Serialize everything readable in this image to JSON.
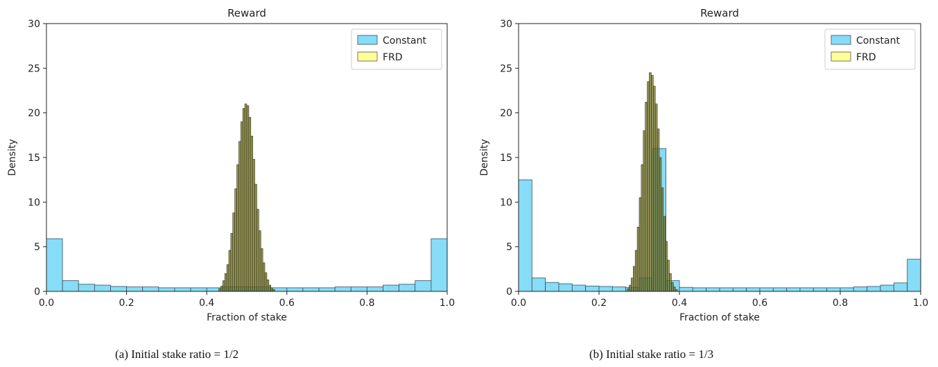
{
  "chart_data": [
    {
      "type": "bar",
      "caption": "(a) Initial stake ratio = 1/2",
      "title": "Reward",
      "xlabel": "Fraction of stake",
      "ylabel": "Density",
      "xlim": [
        0,
        1
      ],
      "ylim": [
        0,
        30
      ],
      "xticks": [
        "0.0",
        "0.2",
        "0.4",
        "0.6",
        "0.8",
        "1.0"
      ],
      "yticks": [
        "0",
        "5",
        "10",
        "15",
        "20",
        "25",
        "30"
      ],
      "legend_position": "top-right",
      "series": [
        {
          "name": "Constant",
          "color": "#87dcf7",
          "bin_width": 0.04,
          "bin_starts": [
            0,
            0.04,
            0.08,
            0.12,
            0.16,
            0.2,
            0.24,
            0.28,
            0.32,
            0.36,
            0.4,
            0.44,
            0.48,
            0.52,
            0.56,
            0.6,
            0.64,
            0.68,
            0.72,
            0.76,
            0.8,
            0.84,
            0.88,
            0.92,
            0.96
          ],
          "values": [
            5.9,
            1.2,
            0.8,
            0.7,
            0.55,
            0.5,
            0.5,
            0.4,
            0.4,
            0.4,
            0.4,
            0.5,
            0.5,
            0.5,
            0.4,
            0.4,
            0.4,
            0.4,
            0.5,
            0.5,
            0.5,
            0.7,
            0.8,
            1.2,
            5.9
          ]
        },
        {
          "name": "FRD",
          "color": "#ffff88",
          "bin_width": 0.005,
          "bin_starts": [
            0.43,
            0.435,
            0.44,
            0.445,
            0.45,
            0.455,
            0.46,
            0.465,
            0.47,
            0.475,
            0.48,
            0.485,
            0.49,
            0.495,
            0.5,
            0.505,
            0.51,
            0.515,
            0.52,
            0.525,
            0.53,
            0.535,
            0.54,
            0.545,
            0.55,
            0.555,
            0.56,
            0.565
          ],
          "values": [
            0.3,
            0.6,
            1.2,
            2.0,
            3.0,
            4.6,
            6.5,
            8.8,
            11.5,
            14.2,
            16.8,
            19.0,
            20.5,
            21.0,
            20.8,
            19.5,
            17.4,
            14.8,
            12.0,
            9.2,
            6.8,
            4.8,
            3.2,
            2.1,
            1.3,
            0.7,
            0.4,
            0.2
          ]
        }
      ]
    },
    {
      "type": "bar",
      "caption": "(b) Initial stake ratio = 1/3",
      "title": "Reward",
      "xlabel": "Fraction of stake",
      "ylabel": "Density",
      "xlim": [
        0,
        1
      ],
      "ylim": [
        0,
        30
      ],
      "xticks": [
        "0.0",
        "0.2",
        "0.4",
        "0.6",
        "0.8",
        "1.0"
      ],
      "yticks": [
        "0",
        "5",
        "10",
        "15",
        "20",
        "25",
        "30"
      ],
      "legend_position": "top-right",
      "series": [
        {
          "name": "Constant",
          "color": "#87dcf7",
          "bin_width": 0.0333,
          "bin_starts": [
            0,
            0.0333,
            0.0667,
            0.1,
            0.1333,
            0.1667,
            0.2,
            0.2333,
            0.2667,
            0.3,
            0.3333,
            0.3667,
            0.4,
            0.4333,
            0.4667,
            0.5,
            0.5333,
            0.5667,
            0.6,
            0.6333,
            0.6667,
            0.7,
            0.7333,
            0.7667,
            0.8,
            0.8333,
            0.8667,
            0.9,
            0.9333,
            0.9667
          ],
          "values": [
            12.5,
            1.5,
            1.0,
            0.85,
            0.7,
            0.6,
            0.55,
            0.5,
            0.45,
            1.5,
            16.0,
            1.2,
            0.45,
            0.4,
            0.4,
            0.4,
            0.4,
            0.4,
            0.4,
            0.4,
            0.4,
            0.4,
            0.4,
            0.4,
            0.4,
            0.5,
            0.55,
            0.7,
            0.95,
            3.6
          ]
        },
        {
          "name": "FRD",
          "color": "#ffff88",
          "bin_width": 0.005,
          "bin_starts": [
            0.27,
            0.275,
            0.28,
            0.285,
            0.29,
            0.295,
            0.3,
            0.305,
            0.31,
            0.315,
            0.32,
            0.325,
            0.33,
            0.335,
            0.34,
            0.345,
            0.35,
            0.355,
            0.36,
            0.365,
            0.37,
            0.375,
            0.38,
            0.385,
            0.39
          ],
          "values": [
            0.3,
            0.7,
            1.5,
            2.8,
            4.6,
            7.2,
            10.5,
            14.2,
            18.0,
            21.2,
            23.5,
            24.5,
            24.2,
            23.0,
            21.0,
            18.2,
            15.0,
            11.6,
            8.4,
            5.6,
            3.5,
            2.0,
            1.0,
            0.5,
            0.2
          ]
        }
      ]
    }
  ]
}
